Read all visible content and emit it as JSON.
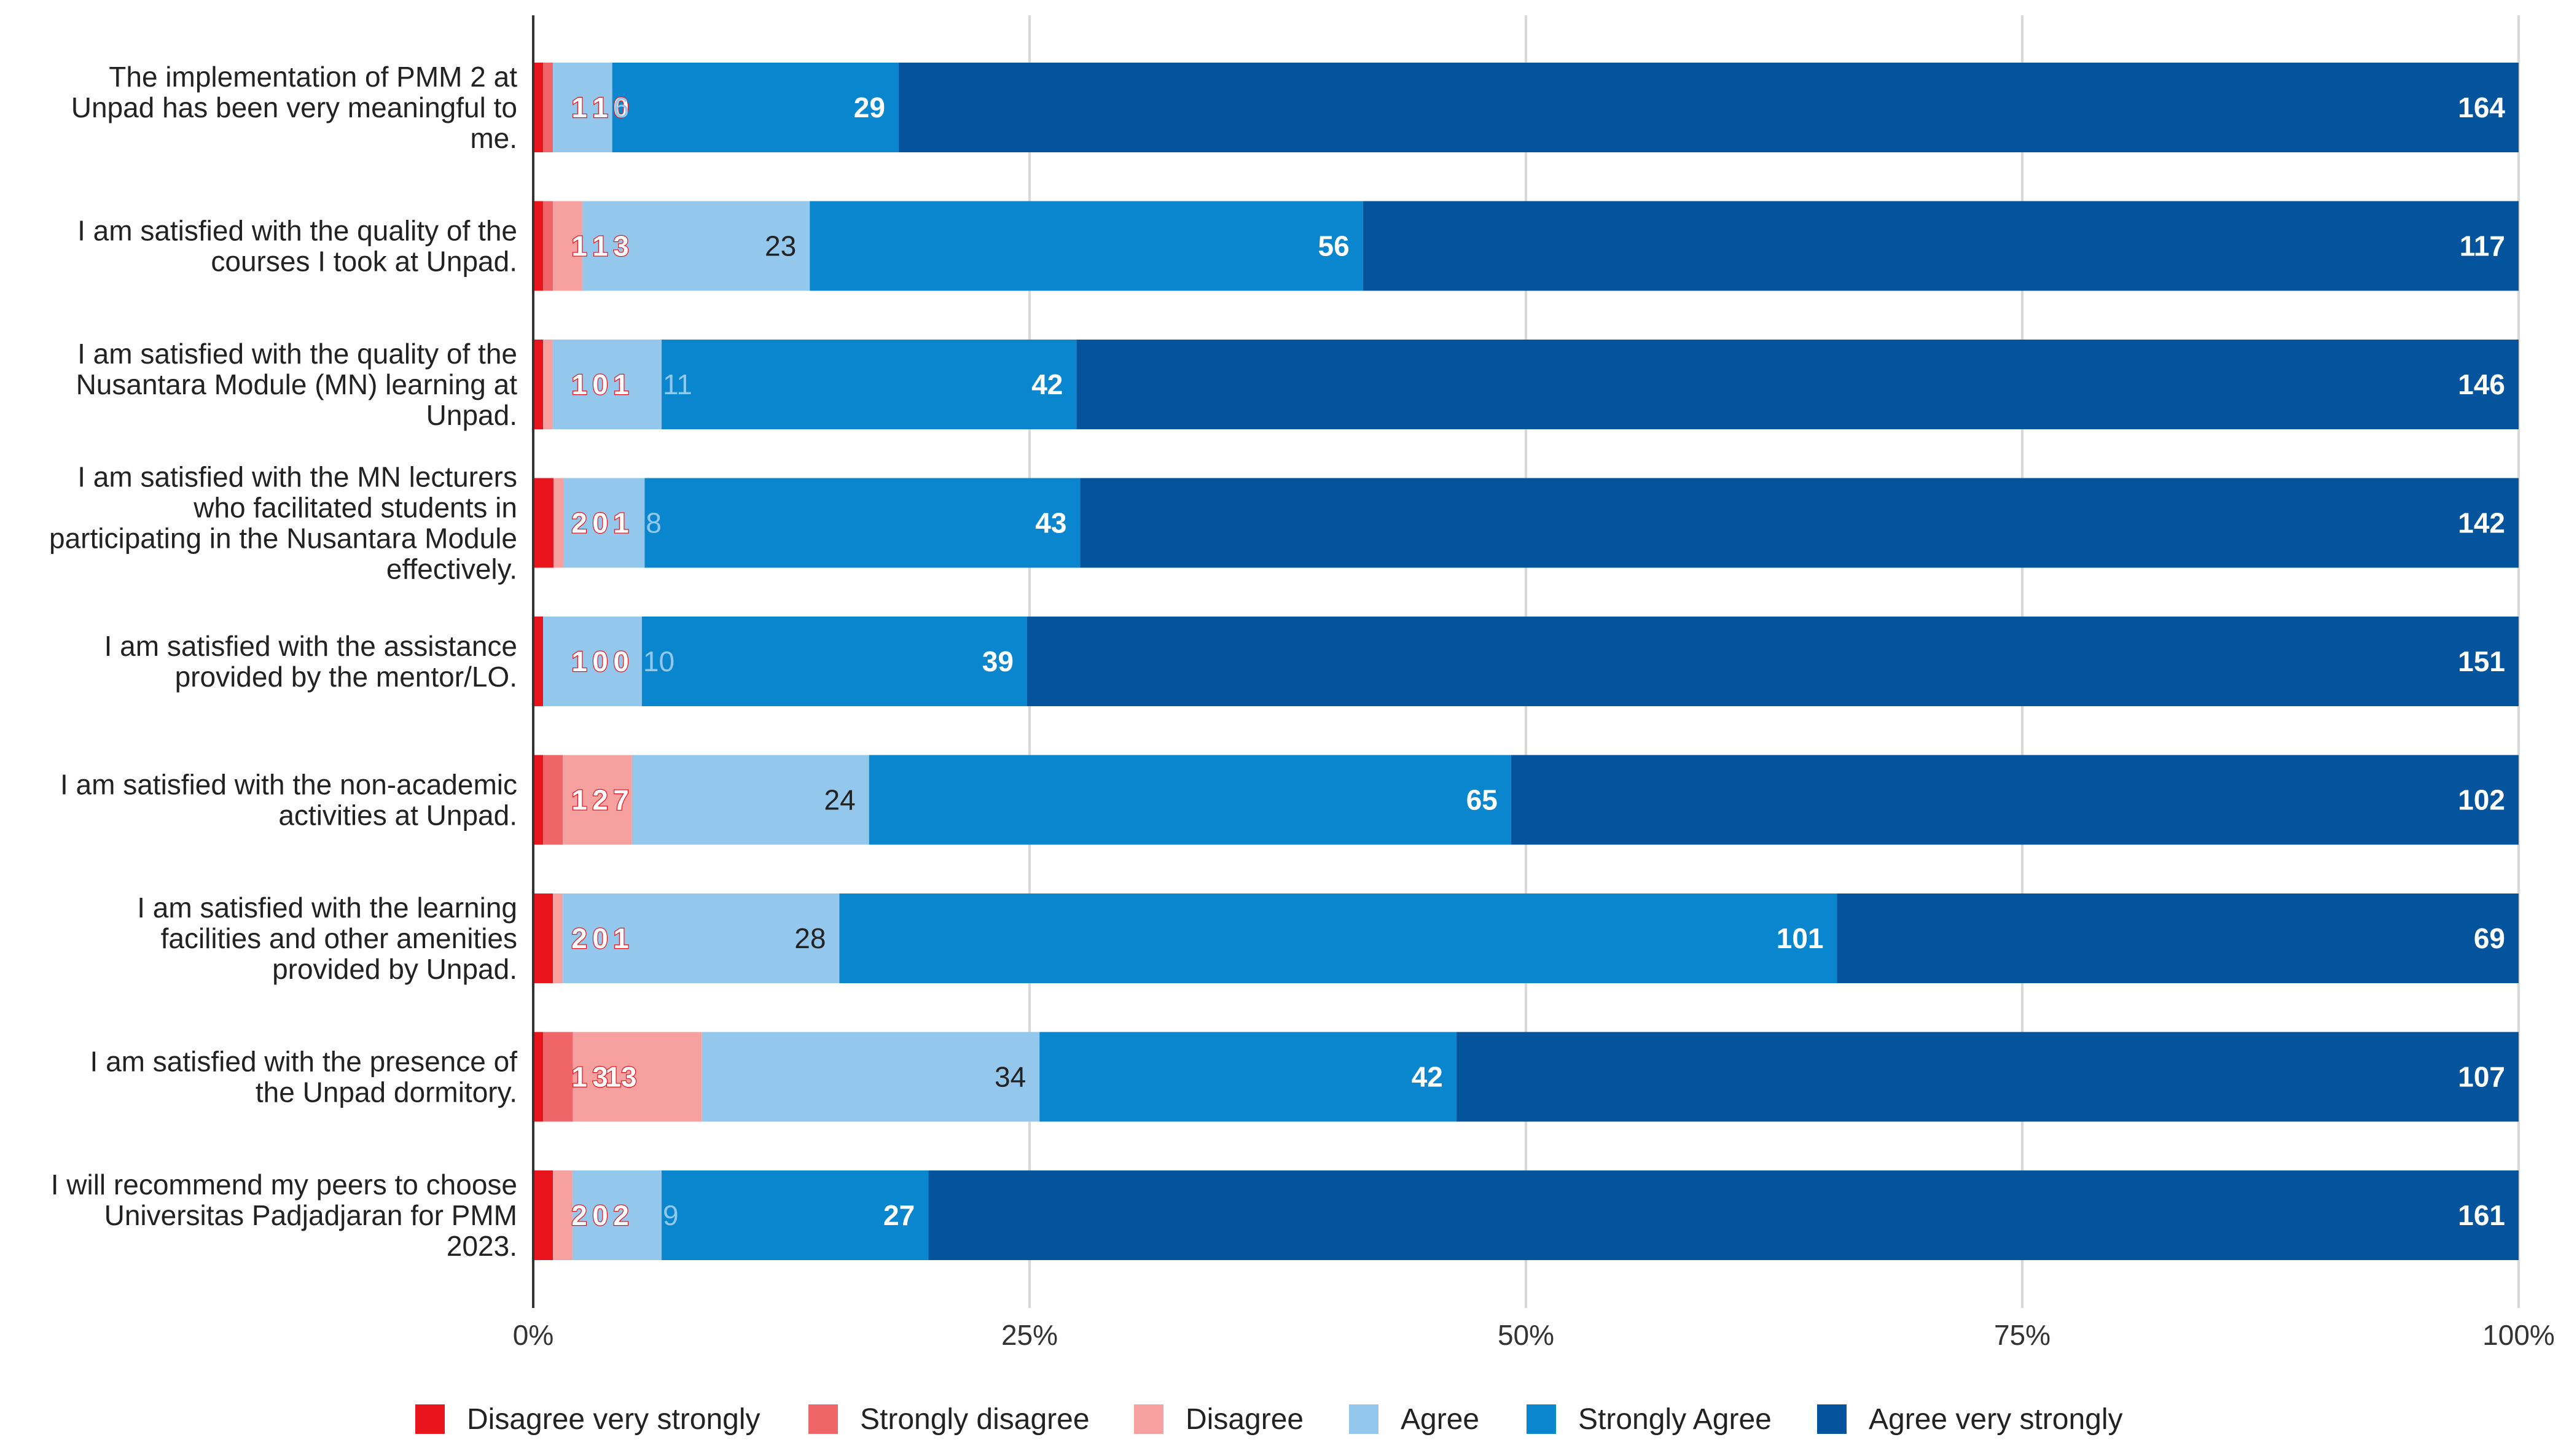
{
  "chart_data": {
    "type": "bar",
    "orientation": "horizontal",
    "stacked": "percent",
    "title": "",
    "xlabel": "",
    "ylabel": "",
    "xlim": [
      0,
      100
    ],
    "x_ticks": [
      "0%",
      "25%",
      "50%",
      "75%",
      "100%"
    ],
    "grid": true,
    "legend_position": "bottom",
    "categories": [
      [
        "The implementation of PMM 2 at",
        "Unpad has been very meaningful to",
        "me."
      ],
      [
        "I am satisfied with the quality of the",
        "courses I took at Unpad."
      ],
      [
        "I am satisfied with the quality of the",
        "Nusantara Module (MN) learning at",
        "Unpad."
      ],
      [
        "I am satisfied with the MN lecturers",
        "who facilitated students in",
        "participating in the Nusantara Module",
        "effectively."
      ],
      [
        "I am satisfied with the assistance",
        "provided by the mentor/LO."
      ],
      [
        "I am satisfied with the non-academic",
        "activities at Unpad."
      ],
      [
        "I am satisfied with the learning",
        "facilities and other amenities",
        "provided by Unpad."
      ],
      [
        "I am satisfied with the presence of",
        "the Unpad dormitory."
      ],
      [
        "I will recommend my peers to choose",
        "Universitas Padjadjaran for PMM",
        "2023."
      ]
    ],
    "series": [
      {
        "name": "Disagree very strongly",
        "color": "#e8161c",
        "label_color": "#ffffff",
        "values": [
          1,
          1,
          1,
          2,
          1,
          1,
          2,
          1,
          2
        ]
      },
      {
        "name": "Strongly disagree",
        "color": "#f06668",
        "label_color": "#ffffff",
        "values": [
          1,
          1,
          0,
          0,
          0,
          2,
          0,
          3,
          0
        ]
      },
      {
        "name": "Disagree",
        "color": "#f6a0a0",
        "label_color": "#222222",
        "values": [
          0,
          3,
          1,
          1,
          0,
          7,
          1,
          13,
          2
        ]
      },
      {
        "name": "Agree",
        "color": "#93c8ec",
        "label_color": "#222222",
        "values": [
          6,
          23,
          11,
          8,
          10,
          24,
          28,
          34,
          9
        ]
      },
      {
        "name": "Strongly Agree",
        "color": "#0a86cf",
        "label_color": "#ffffff",
        "values": [
          29,
          56,
          42,
          43,
          39,
          65,
          101,
          42,
          27
        ]
      },
      {
        "name": "Agree very strongly",
        "color": "#03549d",
        "label_color": "#ffffff",
        "values": [
          164,
          117,
          146,
          142,
          151,
          102,
          69,
          107,
          161
        ]
      }
    ]
  }
}
